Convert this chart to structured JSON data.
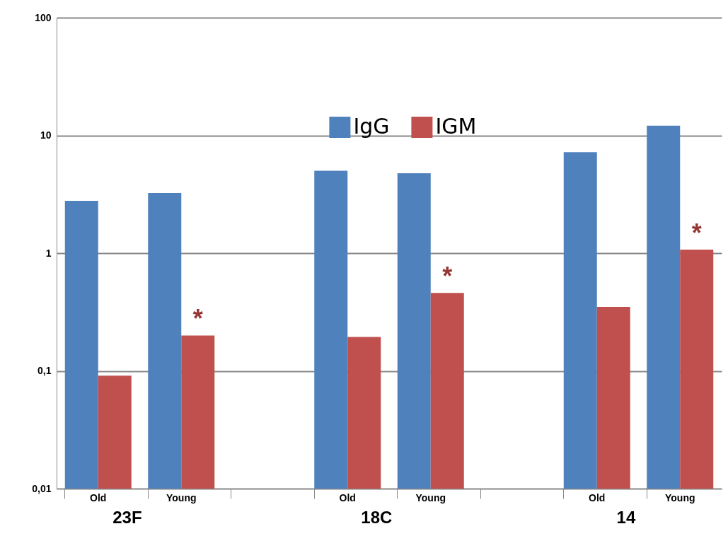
{
  "chart_data": {
    "type": "bar",
    "categories": [
      "Old",
      "Young",
      null,
      "Old",
      "Young",
      null,
      "Old",
      "Young"
    ],
    "series": [
      {
        "name": "IgG",
        "color": "#4f81bd",
        "values": [
          2.78,
          3.24,
          null,
          5.0,
          4.77,
          null,
          7.2,
          12.1
        ]
      },
      {
        "name": "IGM",
        "color": "#c0504d",
        "values": [
          0.091,
          0.2,
          null,
          0.194,
          0.46,
          null,
          0.35,
          1.07
        ]
      }
    ],
    "log": true,
    "ylim": [
      0.01,
      100
    ],
    "yticks": [
      {
        "value": 0.01,
        "label": "0,01"
      },
      {
        "value": 0.1,
        "label": "0,1"
      },
      1,
      10,
      100
    ],
    "grid": "y",
    "legend": "top",
    "annotations": [
      "23F",
      "18C",
      "14",
      {
        "text": "*",
        "y": 0.2
      },
      {
        "text": "*",
        "y": 0.46
      },
      {
        "text": "*",
        "y": 1.07
      }
    ]
  }
}
